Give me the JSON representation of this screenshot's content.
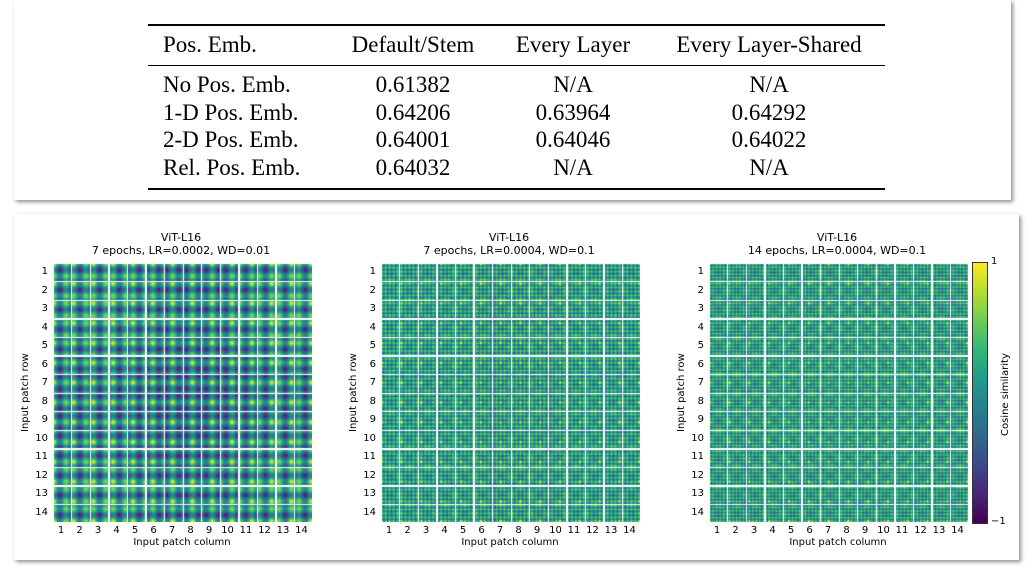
{
  "table": {
    "headers": [
      "Pos. Emb.",
      "Default/Stem",
      "Every Layer",
      "Every Layer-Shared"
    ],
    "rows": [
      [
        "No Pos. Emb.",
        "0.61382",
        "N/A",
        "N/A"
      ],
      [
        "1-D Pos. Emb.",
        "0.64206",
        "0.63964",
        "0.64292"
      ],
      [
        "2-D Pos. Emb.",
        "0.64001",
        "0.64046",
        "0.64022"
      ],
      [
        "Rel. Pos. Emb.",
        "0.64032",
        "N/A",
        "N/A"
      ]
    ]
  },
  "chart_data": [
    {
      "type": "heatmap",
      "title": "ViT-L16",
      "subtitle": "7 epochs, LR=0.0002, WD=0.01",
      "xlabel": "Input patch column",
      "ylabel": "Input patch row",
      "xticks": [
        "1",
        "2",
        "3",
        "4",
        "5",
        "6",
        "7",
        "8",
        "9",
        "10",
        "11",
        "12",
        "13",
        "14"
      ],
      "yticks": [
        "1",
        "2",
        "3",
        "4",
        "5",
        "6",
        "7",
        "8",
        "9",
        "10",
        "11",
        "12",
        "13",
        "14"
      ]
    },
    {
      "type": "heatmap",
      "title": "ViT-L16",
      "subtitle": "7 epochs, LR=0.0004, WD=0.1",
      "xlabel": "Input patch column",
      "ylabel": "Input patch row",
      "xticks": [
        "1",
        "2",
        "3",
        "4",
        "5",
        "6",
        "7",
        "8",
        "9",
        "10",
        "11",
        "12",
        "13",
        "14"
      ],
      "yticks": [
        "1",
        "2",
        "3",
        "4",
        "5",
        "6",
        "7",
        "8",
        "9",
        "10",
        "11",
        "12",
        "13",
        "14"
      ]
    },
    {
      "type": "heatmap",
      "title": "ViT-L16",
      "subtitle": "14 epochs, LR=0.0004, WD=0.1",
      "xlabel": "Input patch column",
      "ylabel": "Input patch row",
      "xticks": [
        "1",
        "2",
        "3",
        "4",
        "5",
        "6",
        "7",
        "8",
        "9",
        "10",
        "11",
        "12",
        "13",
        "14"
      ],
      "yticks": [
        "1",
        "2",
        "3",
        "4",
        "5",
        "6",
        "7",
        "8",
        "9",
        "10",
        "11",
        "12",
        "13",
        "14"
      ]
    }
  ],
  "colorbar": {
    "label": "Cosine similarity",
    "max_label": "1",
    "min_label": "−1",
    "range": [
      -1,
      1
    ],
    "colormap": "viridis"
  }
}
